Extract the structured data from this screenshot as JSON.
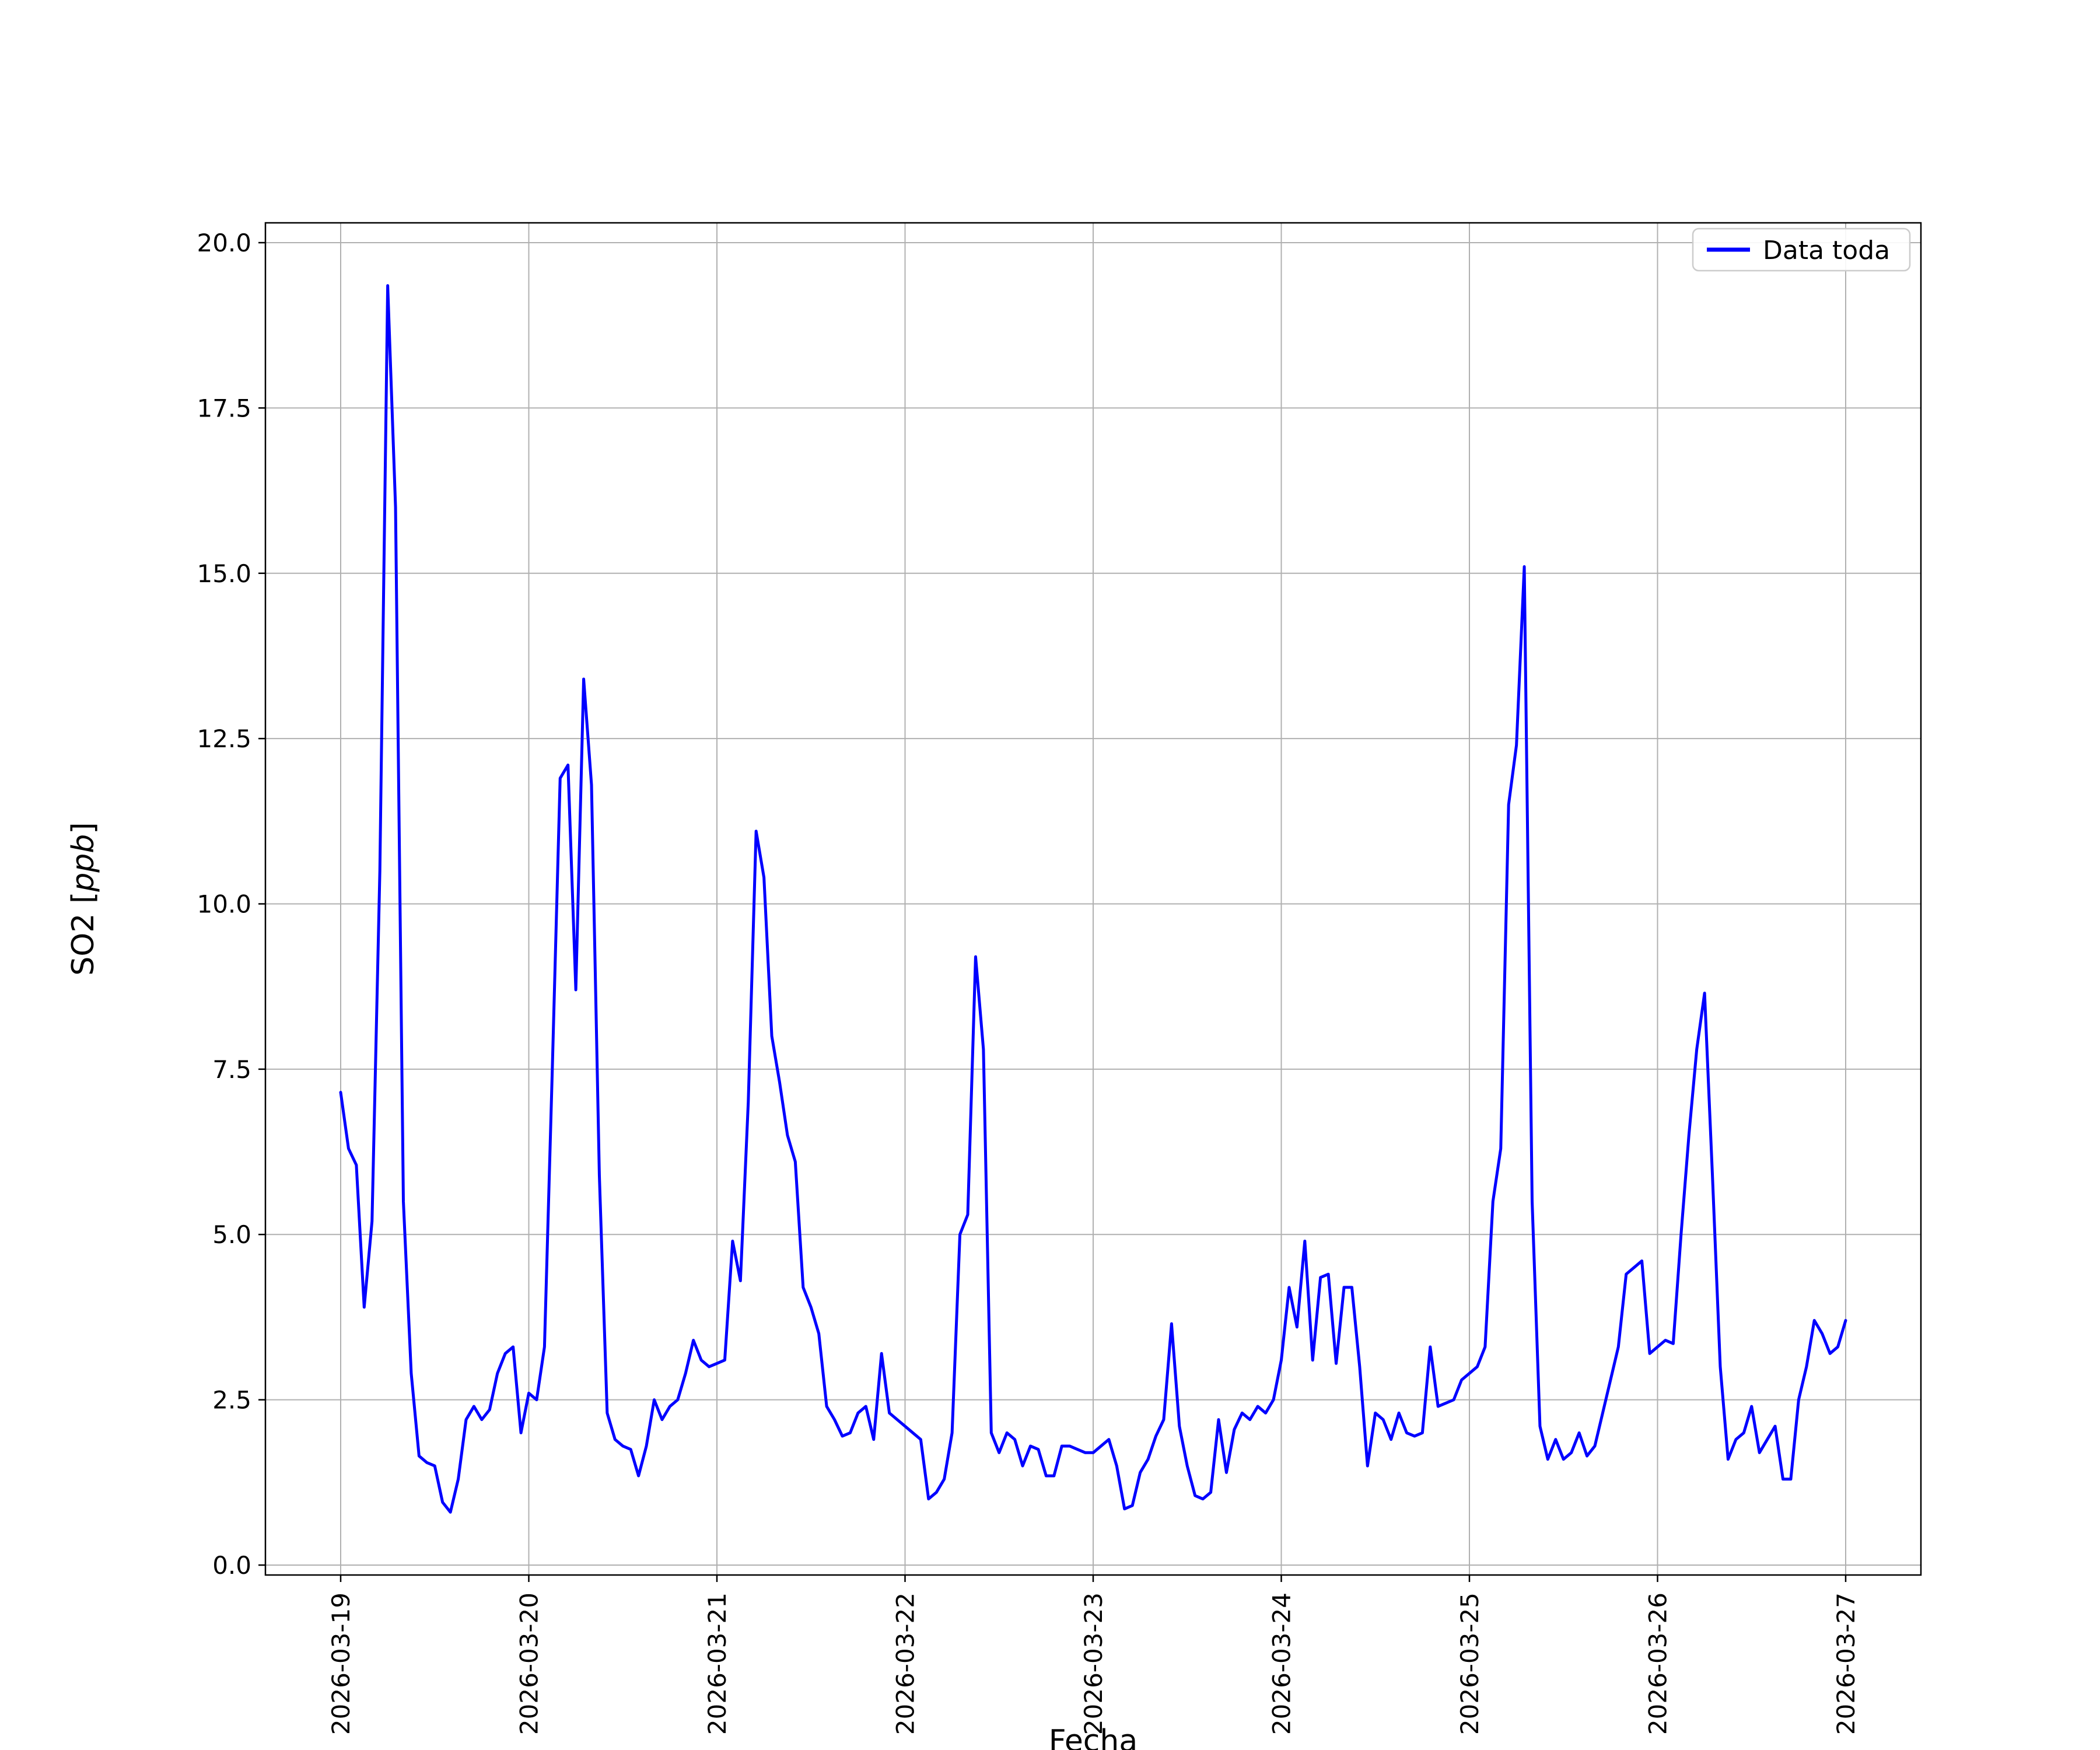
{
  "chart_data": {
    "type": "line",
    "title": "",
    "xlabel": "Fecha",
    "ylabel": "SO2 [ppb]",
    "ylabel_parts": [
      "SO2 [",
      "ppb",
      "]"
    ],
    "legend": [
      "Data toda"
    ],
    "legend_position": "upper right",
    "grid": true,
    "ylim": [
      0.0,
      20.0
    ],
    "yticks": [
      0.0,
      2.5,
      5.0,
      7.5,
      10.0,
      12.5,
      15.0,
      17.5,
      20.0
    ],
    "ytick_labels": [
      "0.0",
      "2.5",
      "5.0",
      "7.5",
      "10.0",
      "12.5",
      "15.0",
      "17.5",
      "20.0"
    ],
    "xtick_labels": [
      "2026-03-19",
      "2026-03-20",
      "2026-03-21",
      "2026-03-22",
      "2026-03-23",
      "2026-03-24",
      "2026-03-25",
      "2026-03-26",
      "2026-03-27"
    ],
    "x_start": "2026-03-19 00:00",
    "x_step_hours": 1,
    "series": [
      {
        "name": "Data toda",
        "color": "#0000ff",
        "values": [
          7.15,
          6.3,
          6.05,
          3.9,
          5.2,
          10.5,
          19.35,
          16.0,
          5.5,
          2.9,
          1.65,
          1.55,
          1.5,
          0.95,
          0.8,
          1.3,
          2.2,
          2.4,
          2.2,
          2.35,
          2.9,
          3.2,
          3.3,
          2.0,
          2.6,
          2.5,
          3.3,
          7.5,
          11.9,
          12.1,
          8.7,
          13.4,
          11.8,
          5.9,
          2.3,
          1.9,
          1.8,
          1.75,
          1.35,
          1.8,
          2.5,
          2.2,
          2.4,
          2.5,
          2.9,
          3.4,
          3.1,
          3.0,
          3.05,
          3.1,
          4.9,
          4.3,
          7.0,
          11.1,
          10.4,
          8.0,
          7.3,
          6.5,
          6.1,
          4.2,
          3.9,
          3.5,
          2.4,
          2.2,
          1.95,
          2.0,
          2.3,
          2.4,
          1.9,
          3.2,
          2.3,
          2.2,
          2.1,
          2.0,
          1.9,
          1.0,
          1.1,
          1.3,
          2.0,
          5.0,
          5.3,
          9.2,
          7.8,
          2.0,
          1.7,
          2.0,
          1.9,
          1.5,
          1.8,
          1.75,
          1.35,
          1.35,
          1.8,
          1.8,
          1.75,
          1.7,
          1.7,
          1.8,
          1.9,
          1.5,
          0.85,
          0.9,
          1.4,
          1.6,
          1.95,
          2.2,
          3.65,
          2.1,
          1.5,
          1.05,
          1.0,
          1.1,
          2.2,
          1.4,
          2.05,
          2.3,
          2.2,
          2.4,
          2.3,
          2.5,
          3.1,
          4.2,
          3.6,
          4.9,
          3.1,
          4.35,
          4.4,
          3.05,
          4.2,
          4.2,
          3.0,
          1.5,
          2.3,
          2.2,
          1.9,
          2.3,
          2.0,
          1.95,
          2.0,
          3.3,
          2.4,
          2.45,
          2.5,
          2.8,
          2.9,
          3.0,
          3.3,
          5.5,
          6.3,
          11.5,
          12.4,
          15.1,
          5.5,
          2.1,
          1.6,
          1.9,
          1.6,
          1.7,
          2.0,
          1.65,
          1.8,
          2.3,
          2.8,
          3.3,
          4.4,
          4.5,
          4.6,
          3.2,
          3.3,
          3.4,
          3.35,
          5.0,
          6.5,
          7.8,
          8.65,
          5.9,
          3.0,
          1.6,
          1.9,
          2.0,
          2.4,
          1.7,
          1.9,
          2.1,
          1.3,
          1.3,
          2.5,
          3.0,
          3.7,
          3.5,
          3.2,
          3.3,
          3.7
        ]
      }
    ],
    "colors": {
      "line": "#0000ff",
      "grid": "#b0b0b0",
      "spine": "#000000",
      "background": "#ffffff",
      "legend_border": "#cccccc"
    }
  }
}
